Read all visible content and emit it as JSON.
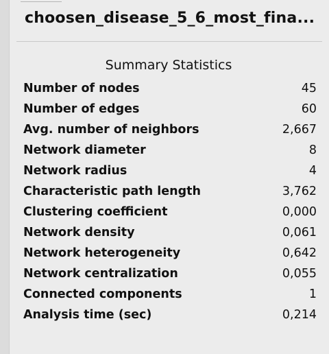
{
  "network": {
    "title": "choosen_disease_5_6_most_fina..."
  },
  "summary": {
    "heading": "Summary Statistics",
    "rows": [
      {
        "label": "Number of nodes",
        "value": "45"
      },
      {
        "label": "Number of edges",
        "value": "60"
      },
      {
        "label": "Avg. number of neighbors",
        "value": "2,667"
      },
      {
        "label": "Network diameter",
        "value": "8"
      },
      {
        "label": "Network radius",
        "value": "4"
      },
      {
        "label": "Characteristic path length",
        "value": "3,762"
      },
      {
        "label": "Clustering coefficient",
        "value": "0,000"
      },
      {
        "label": "Network density",
        "value": "0,061"
      },
      {
        "label": "Network heterogeneity",
        "value": "0,642"
      },
      {
        "label": "Network centralization",
        "value": "0,055"
      },
      {
        "label": "Connected components",
        "value": "1"
      },
      {
        "label": "Analysis time (sec)",
        "value": "0,214"
      }
    ]
  }
}
